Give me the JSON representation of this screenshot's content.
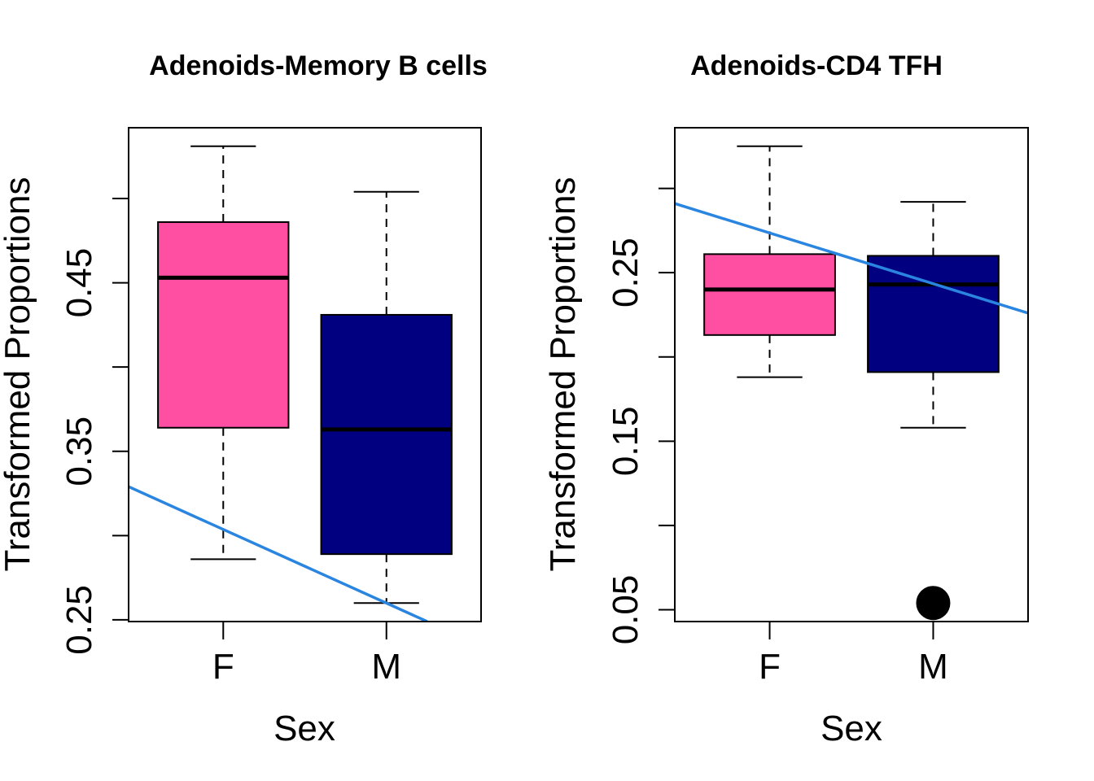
{
  "chart_data": [
    {
      "type": "box",
      "title": "Adenoids-Memory B cells",
      "xlabel": "Sex",
      "ylabel": "Transformed Proportions",
      "categories": [
        "F",
        "M"
      ],
      "ylim": [
        0.249,
        0.542
      ],
      "yticks": [
        0.25,
        0.3,
        0.35,
        0.4,
        0.45,
        0.5
      ],
      "ytick_labels": [
        "0.25",
        "",
        "0.35",
        "",
        "0.45",
        ""
      ],
      "grid": false,
      "boxes": [
        {
          "category": "F",
          "whisker_low": 0.286,
          "q1": 0.364,
          "median": 0.453,
          "q3": 0.486,
          "whisker_high": 0.531,
          "outliers": [],
          "color": "#FF4FA3"
        },
        {
          "category": "M",
          "whisker_low": 0.26,
          "q1": 0.289,
          "median": 0.363,
          "q3": 0.431,
          "whisker_high": 0.504,
          "outliers": [],
          "color": "#000080"
        }
      ],
      "trend_line": {
        "color": "#2A85E0",
        "x_start": 0.42,
        "y_start": 0.329,
        "x_end": 2.25,
        "y_end": 0.249
      }
    },
    {
      "type": "box",
      "title": "Adenoids-CD4 TFH",
      "xlabel": "Sex",
      "ylabel": "Transformed Proportions",
      "categories": [
        "F",
        "M"
      ],
      "ylim": [
        0.043,
        0.336
      ],
      "yticks": [
        0.05,
        0.1,
        0.15,
        0.2,
        0.25,
        0.3
      ],
      "ytick_labels": [
        "0.05",
        "",
        "0.15",
        "",
        "0.25",
        ""
      ],
      "grid": false,
      "boxes": [
        {
          "category": "F",
          "whisker_low": 0.188,
          "q1": 0.213,
          "median": 0.24,
          "q3": 0.261,
          "whisker_high": 0.325,
          "outliers": [],
          "color": "#FF4FA3"
        },
        {
          "category": "M",
          "whisker_low": 0.158,
          "q1": 0.191,
          "median": 0.243,
          "q3": 0.26,
          "whisker_high": 0.292,
          "outliers": [
            0.054
          ],
          "color": "#000080"
        }
      ],
      "trend_line": {
        "color": "#2A85E0",
        "x_start": 0.42,
        "y_start": 0.291,
        "x_end": 2.58,
        "y_end": 0.226
      }
    }
  ]
}
